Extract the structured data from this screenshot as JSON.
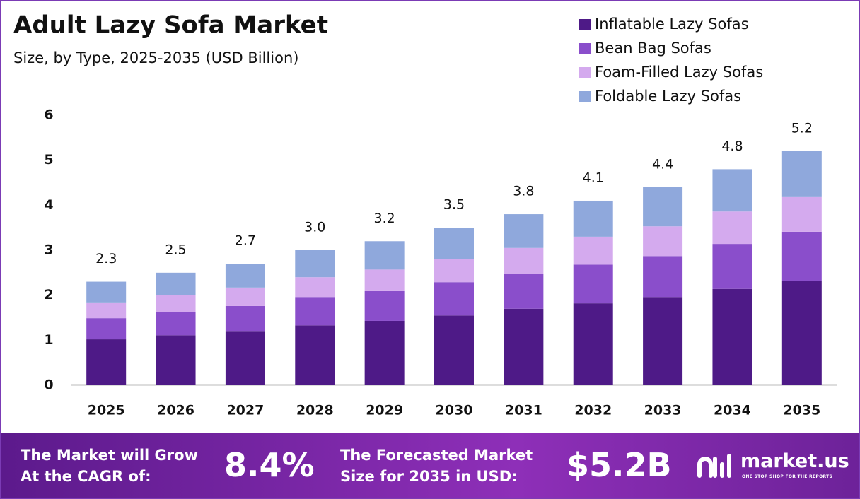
{
  "chart_data": {
    "type": "stacked_bar",
    "title": "Adult Lazy Sofa Market",
    "subtitle": "Size, by Type, 2025-2035 (USD Billion)",
    "categories": [
      "2025",
      "2026",
      "2027",
      "2028",
      "2029",
      "2030",
      "2031",
      "2032",
      "2033",
      "2034",
      "2035"
    ],
    "series": [
      {
        "name": "Inflatable Lazy Sofas",
        "color": "#4e1a87",
        "values": [
          1.02,
          1.11,
          1.19,
          1.33,
          1.43,
          1.55,
          1.7,
          1.82,
          1.96,
          2.14,
          2.32
        ]
      },
      {
        "name": "Bean Bag Sofas",
        "color": "#8a4ecb",
        "values": [
          0.47,
          0.52,
          0.57,
          0.63,
          0.66,
          0.74,
          0.78,
          0.86,
          0.91,
          1.0,
          1.09
        ]
      },
      {
        "name": "Foam-Filled Lazy Sofas",
        "color": "#d4aaee",
        "values": [
          0.35,
          0.38,
          0.41,
          0.44,
          0.48,
          0.52,
          0.57,
          0.62,
          0.66,
          0.72,
          0.77
        ]
      },
      {
        "name": "Foldable Lazy Sofas",
        "color": "#8fa8dc",
        "values": [
          0.46,
          0.49,
          0.53,
          0.6,
          0.63,
          0.69,
          0.75,
          0.8,
          0.87,
          0.94,
          1.02
        ]
      }
    ],
    "totals": [
      2.3,
      2.5,
      2.7,
      3.0,
      3.2,
      3.5,
      3.8,
      4.1,
      4.4,
      4.8,
      5.2
    ],
    "total_labels": [
      "2.3",
      "2.5",
      "2.7",
      "3.0",
      "3.2",
      "3.5",
      "3.8",
      "4.1",
      "4.4",
      "4.8",
      "5.2"
    ],
    "ylim": [
      0,
      6
    ],
    "yticks": [
      0,
      1,
      2,
      3,
      4,
      5,
      6
    ],
    "grid": false
  },
  "footer": {
    "cagr_text": [
      "The Market will Grow",
      "At the CAGR of:"
    ],
    "cagr_value": "8.4%",
    "forecast_text": [
      "The Forecasted Market",
      "Size for 2035 in USD:"
    ],
    "forecast_value": "$5.2B",
    "logo": "market.us",
    "tagline": "ONE STOP SHOP FOR THE REPORTS"
  }
}
